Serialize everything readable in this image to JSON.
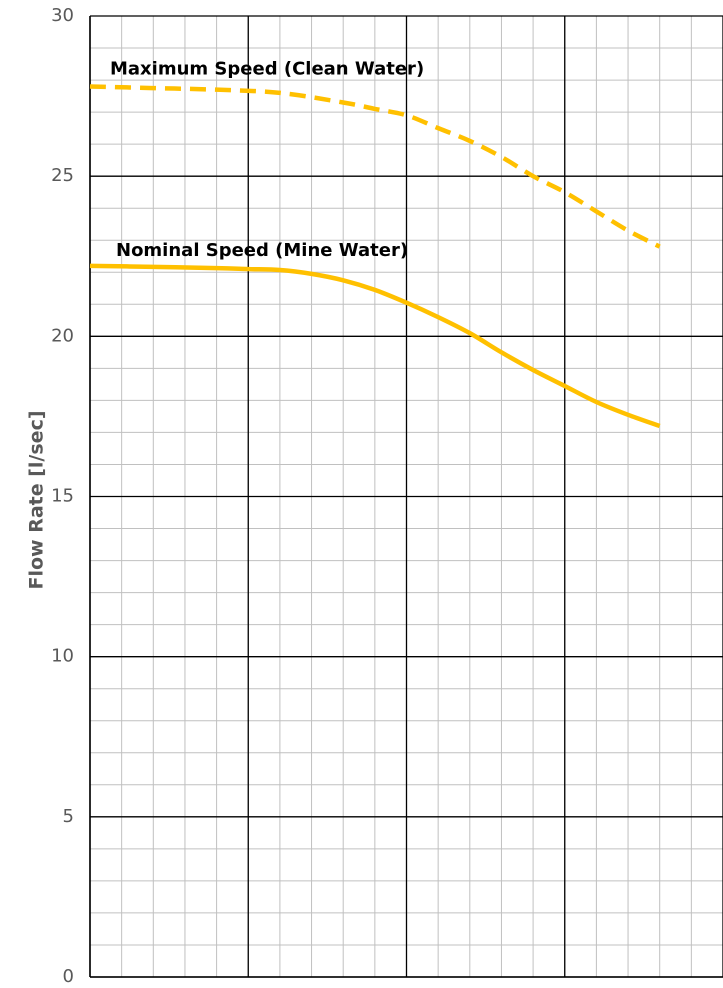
{
  "chart_data": {
    "type": "line",
    "title": "",
    "xlabel": "",
    "ylabel": "Flow Rate [l/sec]",
    "ylim": [
      0,
      30
    ],
    "yticks": [
      0,
      5,
      10,
      15,
      20,
      25,
      30
    ],
    "xlim": [
      0,
      100
    ],
    "x_major_grid": [
      0,
      25,
      50,
      75,
      100
    ],
    "x_minor_step": 5,
    "y_minor_step": 1,
    "grid": true,
    "legend": "none",
    "series": [
      {
        "name": "Maximum Speed (Clean Water)",
        "style": "dashed",
        "color": "#FFC000",
        "x": [
          0,
          10,
          20,
          30,
          40,
          45,
          50,
          55,
          60,
          65,
          70,
          75,
          80,
          85,
          90
        ],
        "y": [
          27.8,
          27.75,
          27.7,
          27.6,
          27.3,
          27.1,
          26.9,
          26.5,
          26.1,
          25.6,
          25.0,
          24.5,
          23.9,
          23.3,
          22.8
        ]
      },
      {
        "name": "Nominal Speed (Mine Water)",
        "style": "solid",
        "color": "#FFC000",
        "x": [
          0,
          10,
          20,
          25,
          30,
          35,
          40,
          45,
          50,
          55,
          60,
          65,
          70,
          75,
          80,
          85,
          90
        ],
        "y": [
          22.2,
          22.17,
          22.13,
          22.1,
          22.07,
          21.95,
          21.75,
          21.45,
          21.05,
          20.6,
          20.1,
          19.5,
          18.95,
          18.45,
          17.95,
          17.55,
          17.2
        ]
      }
    ]
  }
}
